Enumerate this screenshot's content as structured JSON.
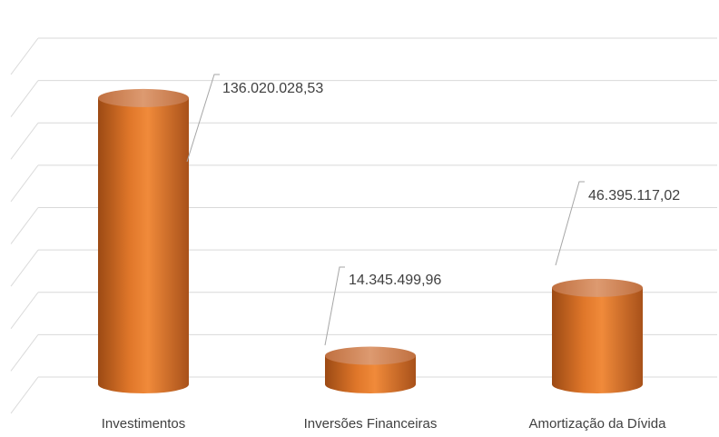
{
  "chart_data": {
    "type": "bar",
    "style": "3d-cylinder",
    "categories": [
      "Investimentos",
      "Inversões Financeiras",
      "Amortização da Dívida"
    ],
    "values": [
      136020028.53,
      14345499.96,
      46395117.02
    ],
    "data_labels": [
      "136.020.028,53",
      "14.345.499,96",
      "46.395.117,02"
    ],
    "ylim": [
      0,
      160000000
    ],
    "grid": true,
    "legend": "none",
    "colors": {
      "bar_body": "#d9691f",
      "bar_highlight": "#f08a3a",
      "bar_shadow": "#9c4a14",
      "bar_top": "#d38a5b",
      "gridline": "#d9d9d9",
      "leader_line": "#a6a6a6",
      "text": "#404040"
    }
  }
}
